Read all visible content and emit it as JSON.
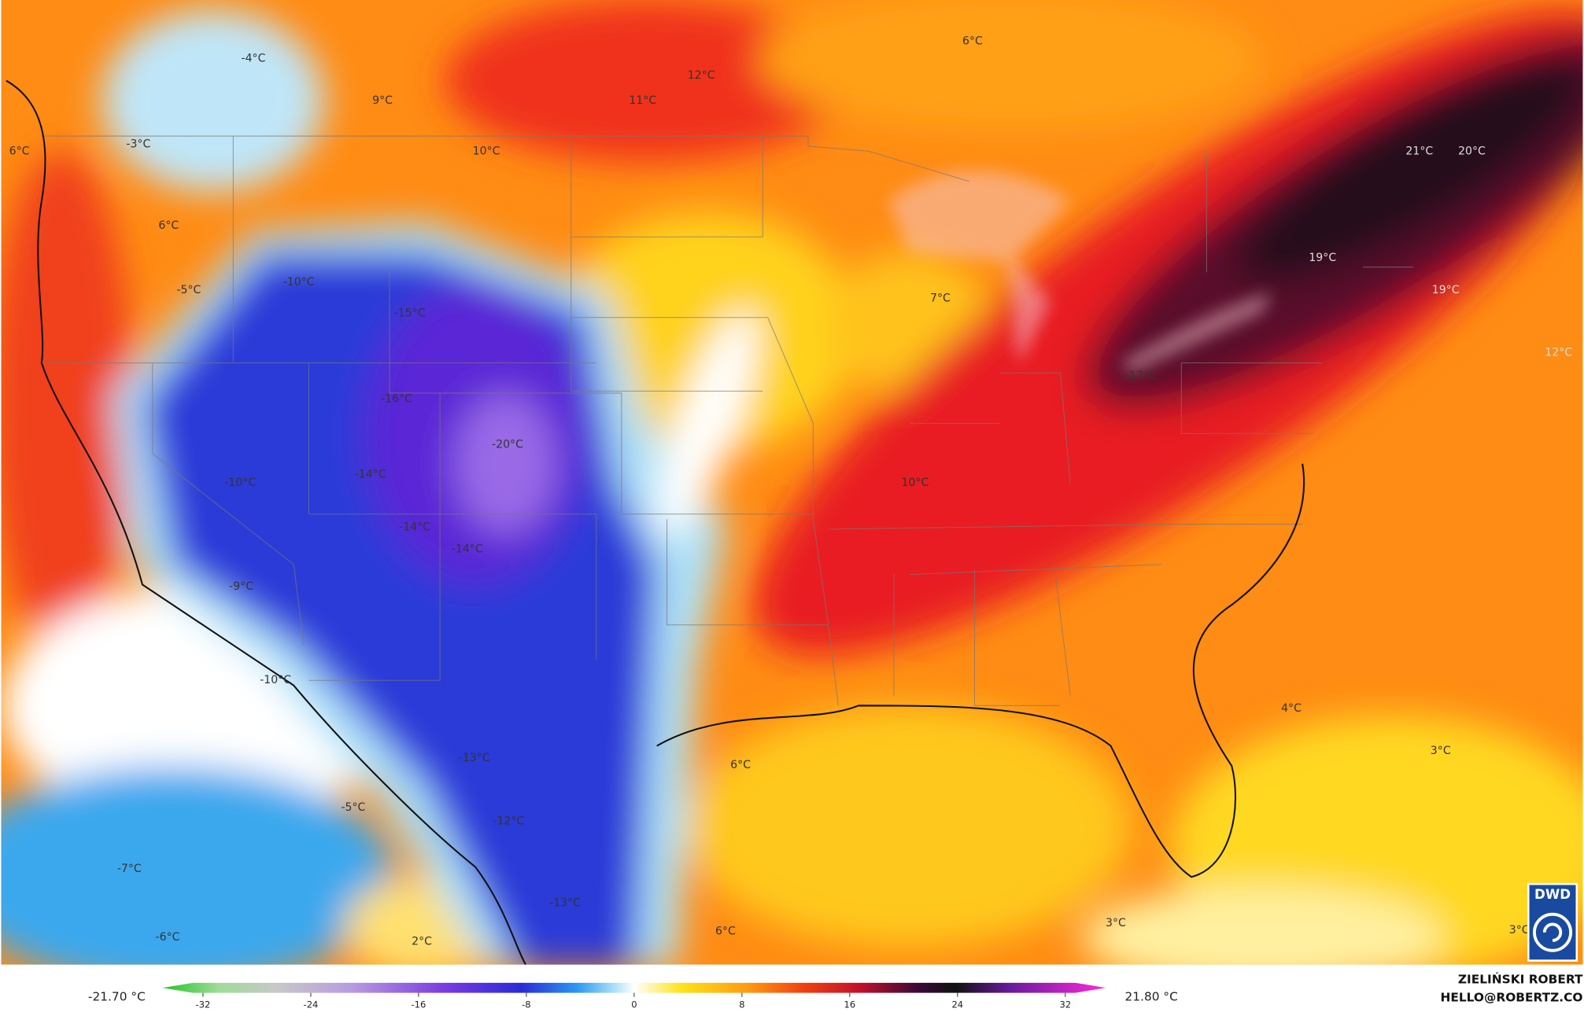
{
  "map_labels": [
    "-4°C",
    "9°C",
    "12°C",
    "11°C",
    "6°C",
    "-3°C",
    "6°C",
    "10°C",
    "21°C",
    "20°C",
    "6°C",
    "-10°C",
    "-5°C",
    "-15°C",
    "7°C",
    "19°C",
    "19°C",
    "12°C",
    "-16°C",
    "-17°C",
    "-20°C",
    "-14°C",
    "-10°C",
    "10°C",
    "-14°C",
    "-14°C",
    "-9°C",
    "-10°C",
    "4°C",
    "3°C",
    "6°C",
    "-13°C",
    "-5°C",
    "-12°C",
    "-7°C",
    "-13°C",
    "-6°C",
    "2°C",
    "6°C",
    "3°C",
    "3°C"
  ],
  "colorbar": {
    "range": [
      -35,
      35
    ],
    "ticks": [
      -32,
      -24,
      -16,
      -8,
      0,
      8,
      16,
      24,
      32
    ],
    "min_label": "-21.70 °C",
    "max_label": "21.80 °C"
  },
  "credit": {
    "name": "ZIELIŃSKI ROBERT",
    "email": "HELLO@ROBERTZ.CO"
  },
  "logo": {
    "text": "DWD"
  }
}
